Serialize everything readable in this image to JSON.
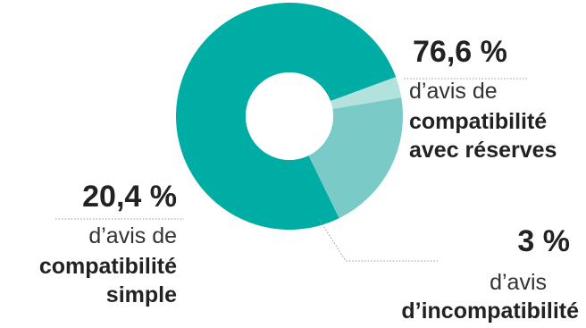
{
  "chart_data": {
    "type": "pie",
    "variant": "donut",
    "legend": "none",
    "slices": [
      {
        "value": 76.6,
        "pct_label": "76,6 %",
        "text_line1": "d’avis de",
        "text_line2": "compatibilité",
        "text_line3": "avec réserves",
        "color": "#00ADA4"
      },
      {
        "value": 3,
        "pct_label": "3 %",
        "text_line1": "d’avis",
        "text_line2": "d’incompatibilité",
        "color": "#B3E1DE"
      },
      {
        "value": 20.4,
        "pct_label": "20,4 %",
        "text_line1": "d’avis de",
        "text_line2": "compatibilité",
        "text_line3": "simple",
        "color": "#7ACBC7"
      }
    ],
    "leader_line_color": "#9a9a9a"
  }
}
